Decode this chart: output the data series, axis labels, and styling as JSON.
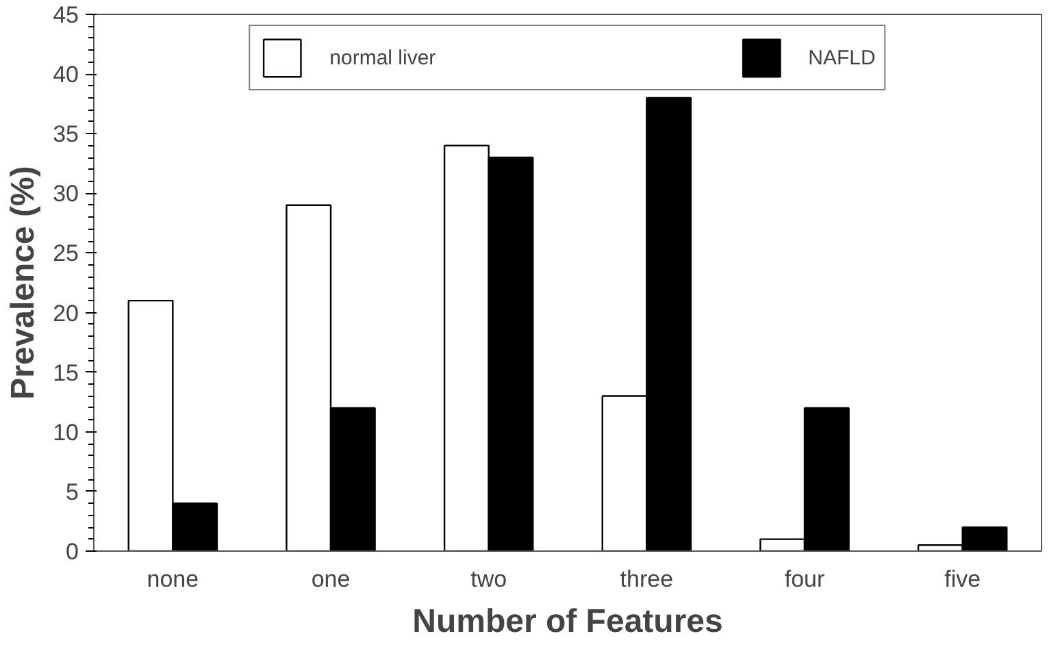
{
  "chart_data": {
    "type": "bar",
    "xlabel": "Number of Features",
    "ylabel": "Prevalence (%)",
    "categories": [
      "none",
      "one",
      "two",
      "three",
      "four",
      "five"
    ],
    "series": [
      {
        "name": "normal liver",
        "color": "#ffffff",
        "values": [
          21,
          29,
          34,
          13,
          1,
          0.5
        ]
      },
      {
        "name": "NAFLD",
        "color": "#000000",
        "values": [
          4,
          12,
          33,
          38,
          12,
          2
        ]
      }
    ],
    "ylim": [
      0,
      45
    ],
    "yticks": [
      0,
      5,
      10,
      15,
      20,
      25,
      30,
      35,
      40,
      45
    ],
    "grid": false,
    "legend": "top"
  }
}
